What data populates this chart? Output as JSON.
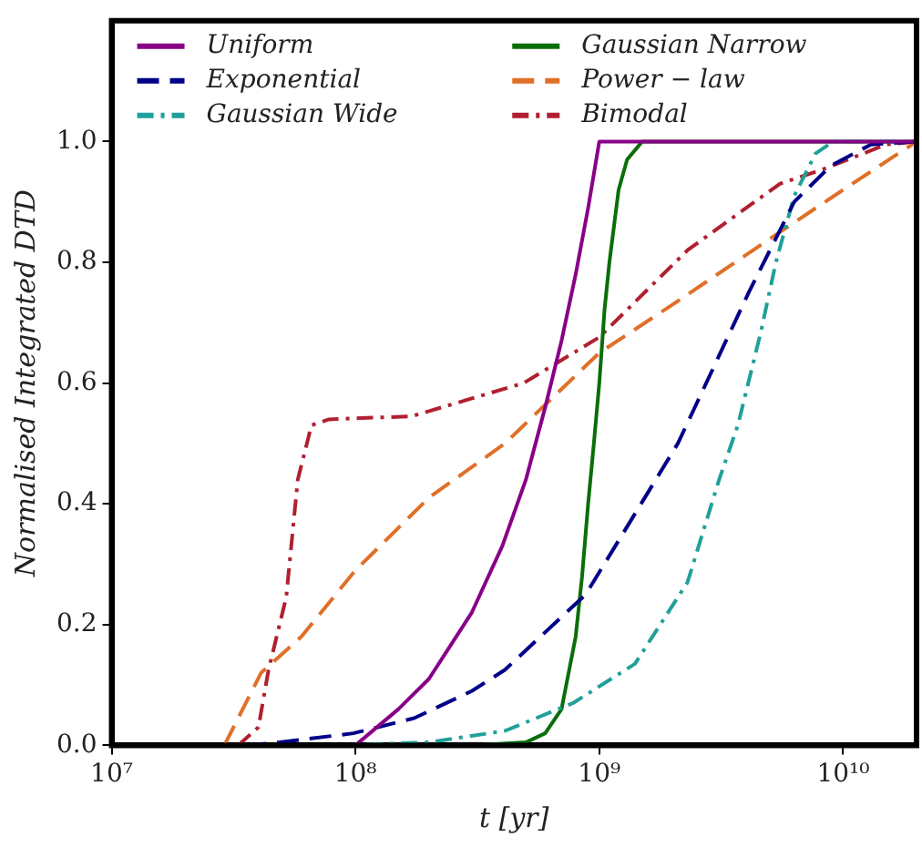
{
  "chart_data": {
    "type": "line",
    "xlabel": "t [yr]",
    "ylabel": "Normalised Integrated DTD",
    "xlim": [
      10000000,
      20000000000
    ],
    "ylim": [
      0,
      1.2
    ],
    "log": "x",
    "xticks": [
      {
        "value": 10000000,
        "label": "10⁷"
      },
      {
        "value": 100000000,
        "label": "10⁸"
      },
      {
        "value": 1000000000,
        "label": "10⁹"
      },
      {
        "value": 10000000000,
        "label": "10¹⁰"
      }
    ],
    "yticks": [
      {
        "value": 0,
        "label": "0.0"
      },
      {
        "value": 0.2,
        "label": "0.2"
      },
      {
        "value": 0.4,
        "label": "0.4"
      },
      {
        "value": 0.6,
        "label": "0.6"
      },
      {
        "value": 0.8,
        "label": "0.8"
      },
      {
        "value": 1.0,
        "label": "1.0"
      }
    ],
    "grid": false,
    "legend": "top",
    "marker": "none",
    "series": [
      {
        "name": "Uniform",
        "color": "#880088",
        "line_style": "solid",
        "x": [
          100000000,
          150000000,
          200000000,
          300000000,
          400000000,
          500000000,
          600000000,
          700000000,
          800000000,
          900000000,
          1000000000,
          20000000000
        ],
        "values": [
          0,
          0.06,
          0.11,
          0.22,
          0.33,
          0.44,
          0.56,
          0.67,
          0.78,
          0.89,
          1.0,
          1.0
        ]
      },
      {
        "name": "Exponential",
        "color": "#000088",
        "line_style": "dashed",
        "x": [
          35000000,
          49000000,
          98000000,
          174000000,
          300000000,
          410000000,
          880000000,
          2100000000,
          4100000000,
          6300000000,
          8900000000,
          13000000000,
          20000000000
        ],
        "values": [
          0,
          0.005,
          0.02,
          0.045,
          0.09,
          0.125,
          0.25,
          0.5,
          0.75,
          0.9,
          0.96,
          0.995,
          1.0
        ]
      },
      {
        "name": "Gaussian Wide",
        "color": "#20a09a",
        "line_style": "dashdot",
        "x": [
          80000000,
          200000000,
          410000000,
          780000000,
          1400000000,
          2300000000,
          3100000000,
          3700000000,
          4600000000,
          5300000000,
          6300000000,
          7700000000,
          9100000000,
          20000000000
        ],
        "values": [
          0,
          0.005,
          0.024,
          0.07,
          0.135,
          0.27,
          0.44,
          0.53,
          0.685,
          0.8,
          0.91,
          0.98,
          1.0,
          1.0
        ]
      },
      {
        "name": "Gaussian Narrow",
        "color": "#0a6e0a",
        "line_style": "solid",
        "x": [
          300000000,
          500000000,
          600000000,
          700000000,
          800000000,
          850000000,
          900000000,
          950000000,
          1000000000,
          1050000000,
          1100000000,
          1200000000,
          1300000000,
          1500000000,
          20000000000
        ],
        "values": [
          0,
          0.005,
          0.02,
          0.06,
          0.18,
          0.28,
          0.4,
          0.5,
          0.6,
          0.72,
          0.8,
          0.92,
          0.97,
          1.0,
          1.0
        ]
      },
      {
        "name": "Power − law",
        "color": "#e07028",
        "line_style": "dashed",
        "x": [
          29000000,
          41000000,
          60000000,
          100000000,
          200000000,
          410000000,
          1000000000,
          2000000000,
          5500000000,
          10000000000,
          20000000000
        ],
        "values": [
          0,
          0.12,
          0.18,
          0.29,
          0.41,
          0.5,
          0.65,
          0.73,
          0.85,
          0.92,
          1.0
        ]
      },
      {
        "name": "Bimodal",
        "color": "#b02030",
        "line_style": "dashdot",
        "x": [
          33000000,
          40000000,
          44000000,
          52000000,
          58000000,
          66000000,
          78000000,
          170000000,
          490000000,
          1000000000,
          2300000000,
          5500000000,
          8400000000,
          15000000000,
          20000000000
        ],
        "values": [
          0,
          0.03,
          0.125,
          0.245,
          0.44,
          0.53,
          0.54,
          0.545,
          0.6,
          0.676,
          0.82,
          0.93,
          0.955,
          0.995,
          1.0
        ]
      }
    ]
  }
}
